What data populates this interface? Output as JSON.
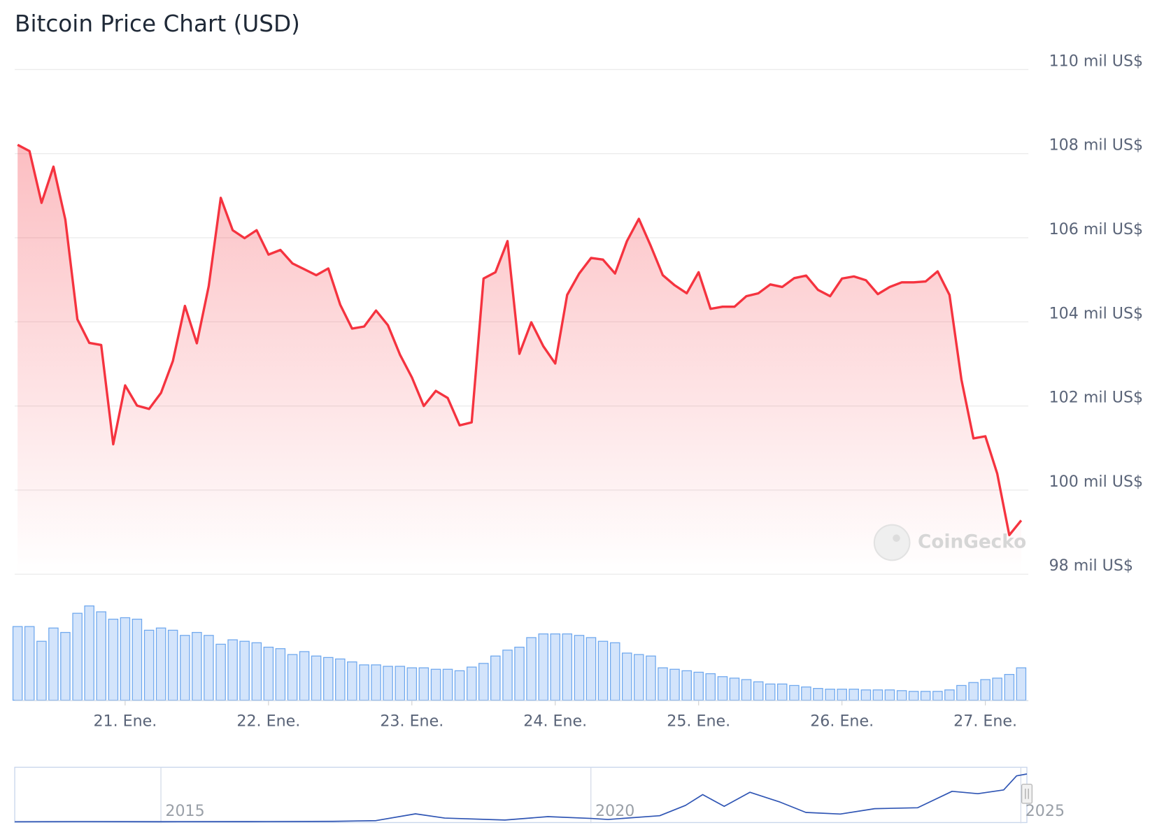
{
  "chart_data": [
    {
      "type": "line",
      "title": "Bitcoin Price Chart (USD)",
      "watermark": "CoinGecko",
      "color": "#f5333f",
      "area": true,
      "grid": true,
      "x": [
        20.25,
        20.333,
        20.417,
        20.5,
        20.583,
        20.667,
        20.75,
        20.833,
        20.917,
        21,
        21.083,
        21.167,
        21.25,
        21.333,
        21.417,
        21.5,
        21.583,
        21.667,
        21.75,
        21.833,
        21.917,
        22,
        22.083,
        22.167,
        22.25,
        22.333,
        22.417,
        22.5,
        22.583,
        22.667,
        22.75,
        22.833,
        22.917,
        23,
        23.083,
        23.167,
        23.25,
        23.333,
        23.417,
        23.5,
        23.583,
        23.667,
        23.75,
        23.833,
        23.917,
        24,
        24.083,
        24.167,
        24.25,
        24.333,
        24.417,
        24.5,
        24.583,
        24.667,
        24.75,
        24.833,
        24.917,
        25,
        25.083,
        25.167,
        25.25,
        25.333,
        25.417,
        25.5,
        25.583,
        25.667,
        25.75,
        25.833,
        25.917,
        26,
        26.083,
        26.167,
        26.25,
        26.333,
        26.417,
        26.5,
        26.583,
        26.667,
        26.75,
        26.833,
        26.917,
        27,
        27.083,
        27.167,
        27.25
      ],
      "values": [
        108210,
        108060,
        106830,
        107690,
        106430,
        104060,
        103500,
        103450,
        101090,
        102490,
        102010,
        101930,
        102310,
        103070,
        104380,
        103490,
        104850,
        106950,
        106180,
        105990,
        106180,
        105600,
        105710,
        105390,
        105250,
        105110,
        105270,
        104410,
        103840,
        103890,
        104270,
        103920,
        103220,
        102680,
        102000,
        102360,
        102190,
        101540,
        101610,
        105030,
        105180,
        105920,
        103240,
        103990,
        103420,
        103010,
        104640,
        105150,
        105520,
        105480,
        105150,
        105920,
        106450,
        105800,
        105110,
        104870,
        104680,
        105180,
        104310,
        104360,
        104360,
        104610,
        104680,
        104890,
        104830,
        105040,
        105100,
        104760,
        104610,
        105030,
        105080,
        104990,
        104660,
        104830,
        104940,
        104940,
        104960,
        105200,
        104640,
        102630,
        101230,
        101280,
        100390,
        98930,
        99280
      ],
      "xlim": [
        20.23,
        27.3
      ],
      "ylim": [
        98000,
        110000
      ],
      "yticks": [
        {
          "value": 98000,
          "label": "98 mil US$"
        },
        {
          "value": 100000,
          "label": "100 mil US$"
        },
        {
          "value": 102000,
          "label": "102 mil US$"
        },
        {
          "value": 104000,
          "label": "104 mil US$"
        },
        {
          "value": 106000,
          "label": "106 mil US$"
        },
        {
          "value": 108000,
          "label": "108 mil US$"
        },
        {
          "value": 110000,
          "label": "110 mil US$"
        }
      ],
      "xticks": [
        {
          "value": 21,
          "label": "21. Ene."
        },
        {
          "value": 22,
          "label": "22. Ene."
        },
        {
          "value": 23,
          "label": "23. Ene."
        },
        {
          "value": 24,
          "label": "24. Ene."
        },
        {
          "value": 25,
          "label": "25. Ene."
        },
        {
          "value": 26,
          "label": "26. Ene."
        },
        {
          "value": 27,
          "label": "27. Ene."
        }
      ]
    },
    {
      "type": "bar",
      "color": "#d3e4fb",
      "edge_color": "#6fa8ee",
      "x": [
        20.25,
        20.333,
        20.417,
        20.5,
        20.583,
        20.667,
        20.75,
        20.833,
        20.917,
        21,
        21.083,
        21.167,
        21.25,
        21.333,
        21.417,
        21.5,
        21.583,
        21.667,
        21.75,
        21.833,
        21.917,
        22,
        22.083,
        22.167,
        22.25,
        22.333,
        22.417,
        22.5,
        22.583,
        22.667,
        22.75,
        22.833,
        22.917,
        23,
        23.083,
        23.167,
        23.25,
        23.333,
        23.417,
        23.5,
        23.583,
        23.667,
        23.75,
        23.833,
        23.917,
        24,
        24.083,
        24.167,
        24.25,
        24.333,
        24.417,
        24.5,
        24.583,
        24.667,
        24.75,
        24.833,
        24.917,
        25,
        25.083,
        25.167,
        25.25,
        25.333,
        25.417,
        25.5,
        25.583,
        25.667,
        25.75,
        25.833,
        25.917,
        26,
        26.083,
        26.167,
        26.25,
        26.333,
        26.417,
        26.5,
        26.583,
        26.667,
        26.75,
        26.833,
        26.917,
        27,
        27.083,
        27.167,
        27.25
      ],
      "values": [
        100,
        100,
        80,
        98,
        92,
        118,
        128,
        120,
        110,
        112,
        110,
        95,
        98,
        95,
        88,
        92,
        88,
        76,
        82,
        80,
        78,
        72,
        70,
        62,
        66,
        60,
        58,
        56,
        52,
        48,
        48,
        46,
        46,
        44,
        44,
        42,
        42,
        40,
        45,
        50,
        60,
        68,
        72,
        85,
        90,
        90,
        90,
        88,
        85,
        80,
        78,
        64,
        62,
        60,
        44,
        42,
        40,
        38,
        36,
        32,
        30,
        28,
        25,
        22,
        22,
        20,
        18,
        16,
        15,
        15,
        15,
        14,
        14,
        14,
        13,
        12,
        12,
        12,
        14,
        20,
        24,
        28,
        30,
        35,
        44
      ],
      "xlim": [
        20.23,
        27.3
      ],
      "ylim": [
        0,
        140
      ]
    },
    {
      "type": "line",
      "color": "#2f55b4",
      "area": false,
      "x": [
        2013.3,
        2014,
        2015,
        2016,
        2017,
        2017.5,
        2017.96,
        2018.3,
        2019,
        2019.5,
        2020,
        2020.2,
        2020.8,
        2021.1,
        2021.3,
        2021.55,
        2021.85,
        2022.2,
        2022.5,
        2022.9,
        2023.3,
        2023.8,
        2024.2,
        2024.5,
        2024.8,
        2024.95,
        2025.07
      ],
      "values": [
        100,
        500,
        250,
        400,
        1000,
        2500,
        17000,
        8000,
        3800,
        11000,
        7200,
        5000,
        13000,
        35000,
        58000,
        33000,
        63000,
        42000,
        20000,
        16500,
        28000,
        30000,
        65000,
        60000,
        68000,
        98000,
        102000
      ],
      "xlim": [
        2013.3,
        2025.07
      ],
      "ylim": [
        0,
        110000
      ],
      "xticks": [
        2015,
        2020,
        2025
      ]
    }
  ]
}
